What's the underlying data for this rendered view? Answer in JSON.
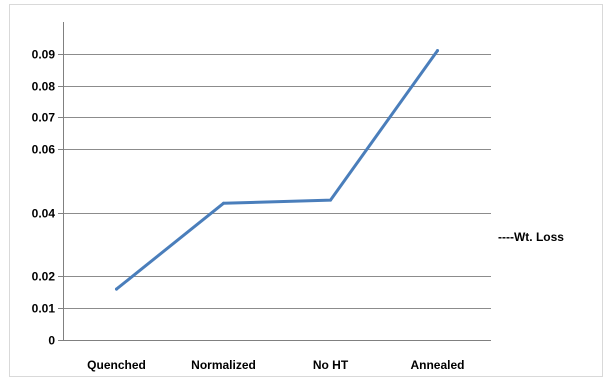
{
  "chart_data": {
    "type": "line",
    "categories": [
      "Quenched",
      "Normalized",
      "No HT",
      "Annealed"
    ],
    "series": [
      {
        "name": "----Wt. Loss",
        "values": [
          0.016,
          0.043,
          0.044,
          0.091
        ],
        "color": "#4a7ebb"
      }
    ],
    "y_ticks": [
      {
        "label": "0",
        "value": 0
      },
      {
        "label": "0.01",
        "value": 0.01
      },
      {
        "label": "0.02",
        "value": 0.02
      },
      {
        "label": "0.04",
        "value": 0.04
      },
      {
        "label": "0.06",
        "value": 0.06
      },
      {
        "label": "0.07",
        "value": 0.07
      },
      {
        "label": "0.08",
        "value": 0.08
      },
      {
        "label": "0.09",
        "value": 0.09
      }
    ],
    "ylim": [
      0,
      0.1
    ],
    "grid": true,
    "legend_position": "right",
    "title": "",
    "xlabel": "",
    "ylabel": ""
  }
}
